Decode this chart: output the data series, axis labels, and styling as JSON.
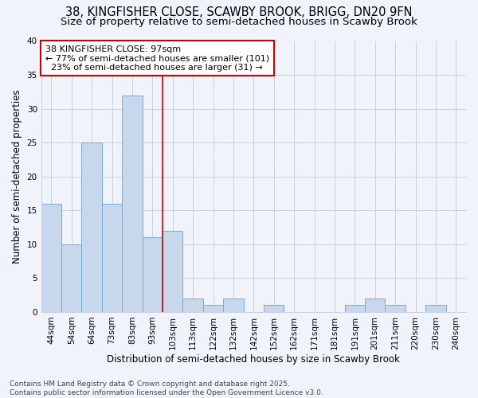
{
  "title1": "38, KINGFISHER CLOSE, SCAWBY BROOK, BRIGG, DN20 9FN",
  "title2": "Size of property relative to semi-detached houses in Scawby Brook",
  "xlabel": "Distribution of semi-detached houses by size in Scawby Brook",
  "ylabel": "Number of semi-detached properties",
  "categories": [
    "44sqm",
    "54sqm",
    "64sqm",
    "73sqm",
    "83sqm",
    "93sqm",
    "103sqm",
    "113sqm",
    "122sqm",
    "132sqm",
    "142sqm",
    "152sqm",
    "162sqm",
    "171sqm",
    "181sqm",
    "191sqm",
    "201sqm",
    "211sqm",
    "220sqm",
    "230sqm",
    "240sqm"
  ],
  "values": [
    16,
    10,
    25,
    16,
    32,
    11,
    12,
    2,
    1,
    2,
    0,
    1,
    0,
    0,
    0,
    1,
    2,
    1,
    0,
    1,
    0
  ],
  "bar_color": "#c8d8ec",
  "bar_edge_color": "#7aaad0",
  "grid_color": "#c8cfe0",
  "bg_color": "#f0f4fa",
  "plot_bg_color": "#f0f4fa",
  "annotation_text": "38 KINGFISHER CLOSE: 97sqm\n← 77% of semi-detached houses are smaller (101)\n  23% of semi-detached houses are larger (31) →",
  "annotation_box_color": "#ffffff",
  "annotation_box_edge": "#cc0000",
  "vline_x": 5.5,
  "vline_color": "#cc0000",
  "ylim": [
    0,
    40
  ],
  "yticks": [
    0,
    5,
    10,
    15,
    20,
    25,
    30,
    35,
    40
  ],
  "footer": "Contains HM Land Registry data © Crown copyright and database right 2025.\nContains public sector information licensed under the Open Government Licence v3.0.",
  "title_fontsize": 10.5,
  "subtitle_fontsize": 9.5,
  "axis_label_fontsize": 8.5,
  "tick_fontsize": 7.5,
  "annot_fontsize": 8,
  "footer_fontsize": 6.5
}
